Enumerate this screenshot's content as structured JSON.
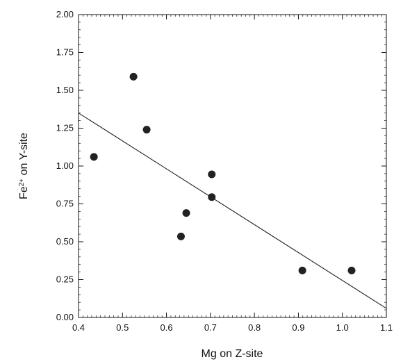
{
  "chart_data": {
    "type": "scatter",
    "xlabel": "Mg on Z-site",
    "ylabel_main": "Fe",
    "ylabel_sup": "2+",
    "ylabel_rest": " on Y-site",
    "xlim": [
      0.4,
      1.1
    ],
    "ylim": [
      0.0,
      2.0
    ],
    "xticks": [
      0.4,
      0.5,
      0.6,
      0.7,
      0.8,
      0.9,
      1.0,
      1.1
    ],
    "xtick_labels": [
      "0.4",
      "0.5",
      "0.6",
      "0.7",
      "0.8",
      "0.9",
      "1.0",
      "1.1"
    ],
    "yticks": [
      0.0,
      0.25,
      0.5,
      0.75,
      1.0,
      1.25,
      1.5,
      1.75,
      2.0
    ],
    "ytick_labels": [
      "0.00",
      "0.25",
      "0.50",
      "0.75",
      "1.00",
      "1.25",
      "1.50",
      "1.75",
      "2.00"
    ],
    "grid": false,
    "points": [
      {
        "x": 0.435,
        "y": 1.06
      },
      {
        "x": 0.525,
        "y": 1.59
      },
      {
        "x": 0.555,
        "y": 1.24
      },
      {
        "x": 0.633,
        "y": 0.535
      },
      {
        "x": 0.645,
        "y": 0.69
      },
      {
        "x": 0.703,
        "y": 0.945
      },
      {
        "x": 0.703,
        "y": 0.795
      },
      {
        "x": 0.909,
        "y": 0.31
      },
      {
        "x": 1.021,
        "y": 0.31
      }
    ],
    "fit_line": {
      "x": [
        0.4,
        1.1
      ],
      "y": [
        1.35,
        0.06
      ]
    },
    "colors": {
      "marker": "#222222",
      "line": "#222222",
      "axis": "#111111"
    }
  }
}
